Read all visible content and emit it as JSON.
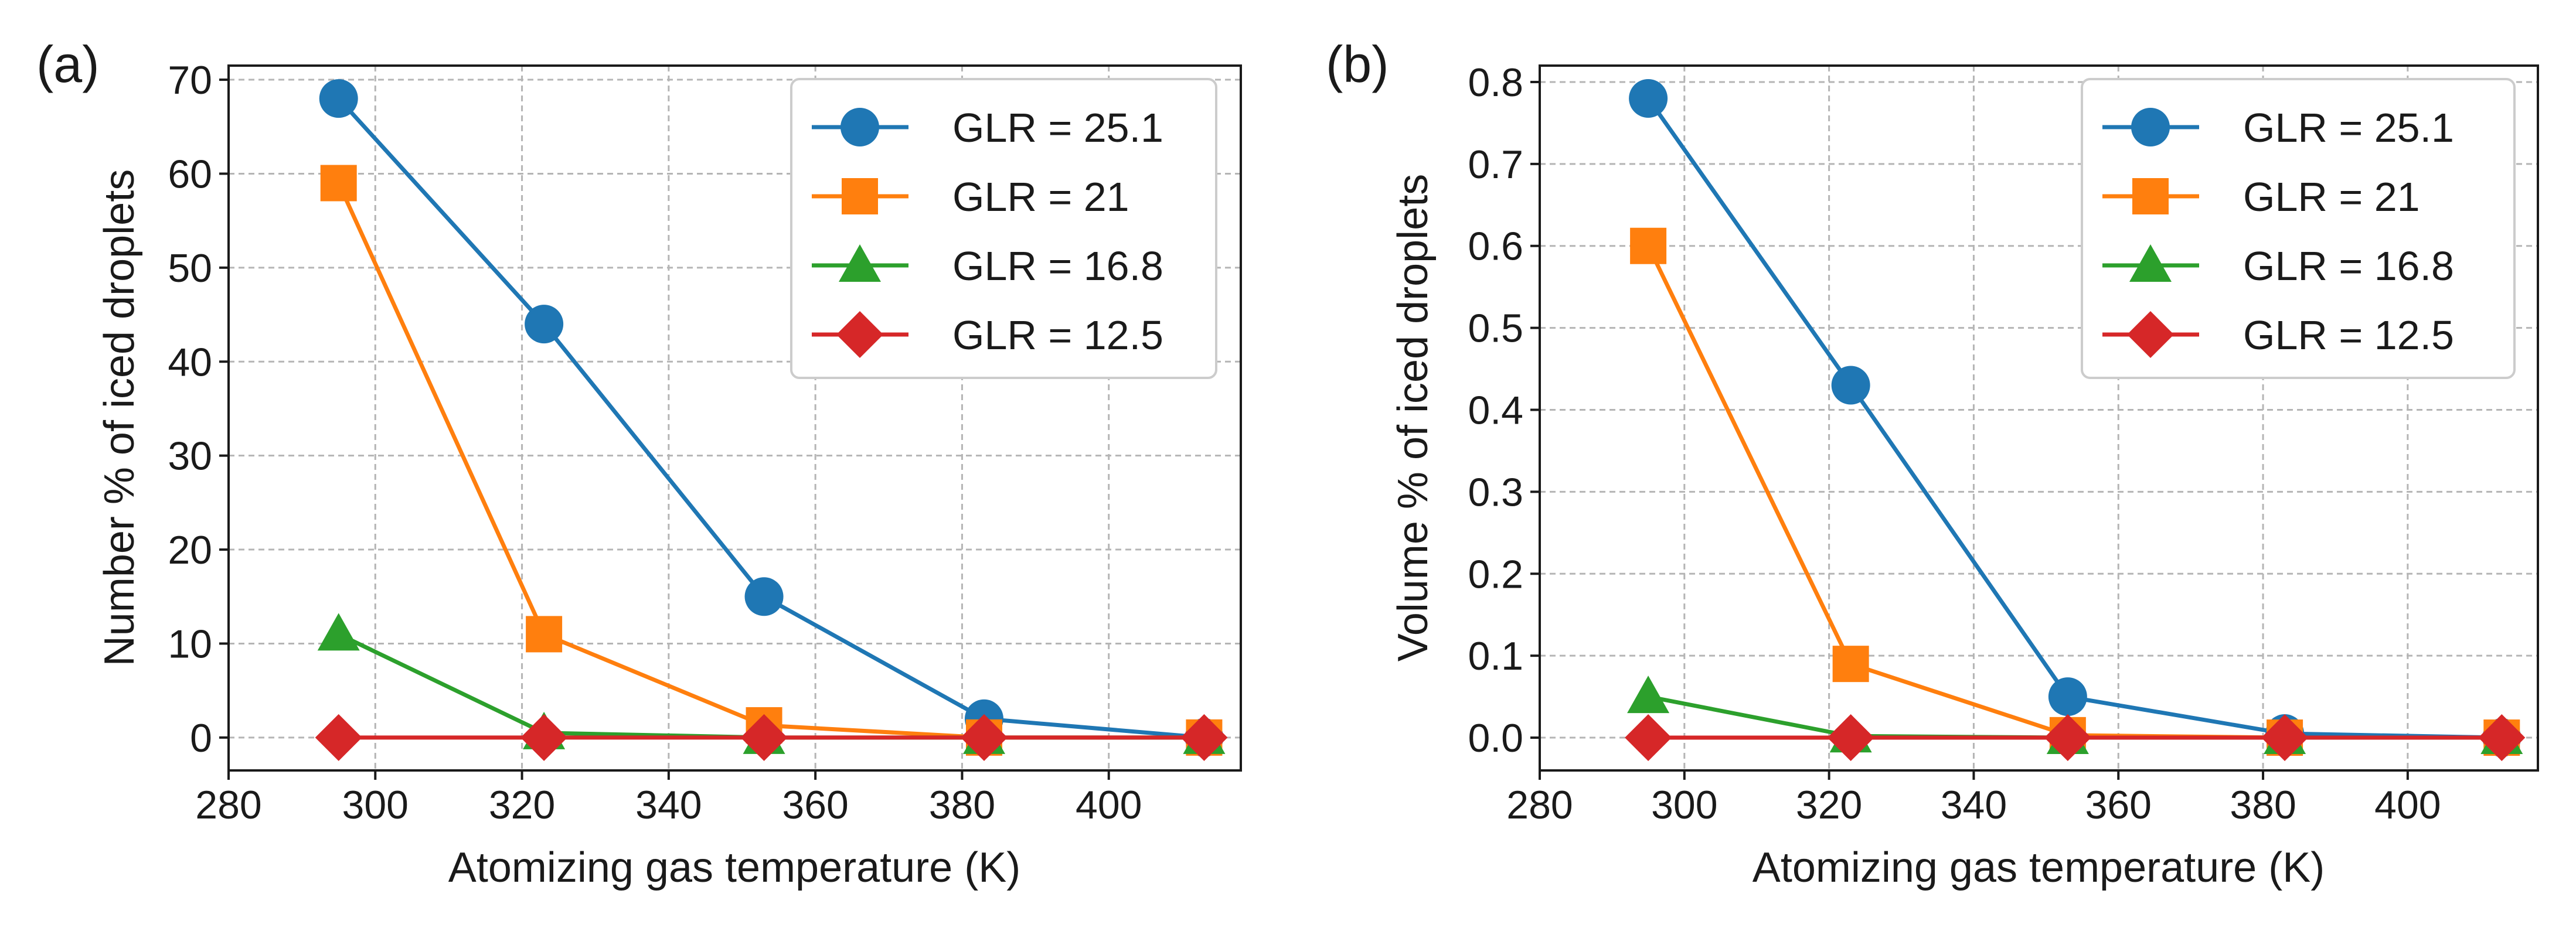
{
  "chart_data": [
    {
      "type": "line",
      "panel_label": "(a)",
      "title": "",
      "xlabel": "Atomizing gas temperature (K)",
      "ylabel": "Number % of iced droplets",
      "xlim": [
        280,
        418
      ],
      "ylim": [
        -3.5,
        71.5
      ],
      "xticks": [
        280,
        300,
        320,
        340,
        360,
        380,
        400
      ],
      "yticks": [
        0,
        10,
        20,
        30,
        40,
        50,
        60,
        70
      ],
      "xtick_labels": [
        "280",
        "300",
        "320",
        "340",
        "360",
        "380",
        "400"
      ],
      "ytick_labels": [
        "0",
        "10",
        "20",
        "30",
        "40",
        "50",
        "60",
        "70"
      ],
      "grid": true,
      "legend_position": "top-right",
      "x": [
        295,
        323,
        353,
        383,
        413
      ],
      "series": [
        {
          "name": "GLR = 25.1",
          "color": "#1f77b4",
          "marker": "circle",
          "values": [
            68,
            44,
            15,
            2,
            0
          ]
        },
        {
          "name": "GLR = 21",
          "color": "#ff7f0e",
          "marker": "square",
          "values": [
            59,
            11,
            1.3,
            0,
            0
          ]
        },
        {
          "name": "GLR = 16.8",
          "color": "#2ca02c",
          "marker": "triangle",
          "values": [
            11,
            0.5,
            0,
            0,
            0
          ]
        },
        {
          "name": "GLR = 12.5",
          "color": "#d62728",
          "marker": "diamond",
          "values": [
            0,
            0,
            0,
            0,
            0
          ]
        }
      ]
    },
    {
      "type": "line",
      "panel_label": "(b)",
      "title": "",
      "xlabel": "Atomizing gas temperature (K)",
      "ylabel": "Volume % of iced droplets",
      "xlim": [
        280,
        418
      ],
      "ylim": [
        -0.04,
        0.82
      ],
      "xticks": [
        280,
        300,
        320,
        340,
        360,
        380,
        400
      ],
      "yticks": [
        0,
        0.1,
        0.2,
        0.3,
        0.4,
        0.5,
        0.6,
        0.7,
        0.8
      ],
      "xtick_labels": [
        "280",
        "300",
        "320",
        "340",
        "360",
        "380",
        "400"
      ],
      "ytick_labels": [
        "0.0",
        "0.1",
        "0.2",
        "0.3",
        "0.4",
        "0.5",
        "0.6",
        "0.7",
        "0.8"
      ],
      "grid": true,
      "legend_position": "top-right",
      "x": [
        295,
        323,
        353,
        383,
        413
      ],
      "series": [
        {
          "name": "GLR = 25.1",
          "color": "#1f77b4",
          "marker": "circle",
          "values": [
            0.78,
            0.43,
            0.05,
            0.005,
            0
          ]
        },
        {
          "name": "GLR = 21",
          "color": "#ff7f0e",
          "marker": "square",
          "values": [
            0.6,
            0.09,
            0.003,
            0,
            0
          ]
        },
        {
          "name": "GLR = 16.8",
          "color": "#2ca02c",
          "marker": "triangle",
          "values": [
            0.05,
            0.002,
            0,
            0,
            0
          ]
        },
        {
          "name": "GLR = 12.5",
          "color": "#d62728",
          "marker": "diamond",
          "values": [
            0,
            0,
            0,
            0,
            0
          ]
        }
      ]
    }
  ]
}
